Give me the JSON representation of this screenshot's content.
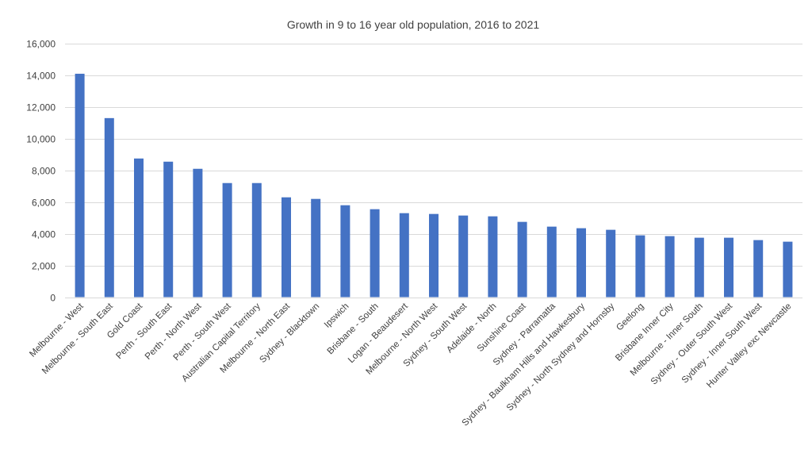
{
  "chart_data": {
    "type": "bar",
    "title": "Growth in 9 to 16 year old population, 2016 to 2021",
    "xlabel": "",
    "ylabel": "",
    "ylim": [
      0,
      16000
    ],
    "yticks": [
      0,
      2000,
      4000,
      6000,
      8000,
      10000,
      12000,
      14000,
      16000
    ],
    "ytick_labels": [
      "0",
      "2,000",
      "4,000",
      "6,000",
      "8,000",
      "10,000",
      "12,000",
      "14,000",
      "16,000"
    ],
    "grid": true,
    "legend": "none",
    "bar_color": "#4472C4",
    "categories": [
      "Melbourne - West",
      "Melbourne - South East",
      "Gold Coast",
      "Perth - South East",
      "Perth - North West",
      "Perth - South West",
      "Australian Capital Territory",
      "Melbourne - North East",
      "Sydney - Blacktown",
      "Ipswich",
      "Brisbane - South",
      "Logan - Beaudesert",
      "Melbourne - North West",
      "Sydney - South West",
      "Adelaide - North",
      "Sunshine Coast",
      "Sydney - Parramatta",
      "Sydney - Baulkham Hills and Hawkesbury",
      "Sydney - North Sydney and Hornsby",
      "Geelong",
      "Brisbane Inner City",
      "Melbourne - Inner South",
      "Sydney - Outer South West",
      "Sydney - Inner South West",
      "Hunter Valley exc Newcastle"
    ],
    "values": [
      14100,
      11300,
      8750,
      8550,
      8100,
      7200,
      7200,
      6300,
      6200,
      5800,
      5550,
      5300,
      5250,
      5150,
      5100,
      4750,
      4450,
      4350,
      4250,
      3900,
      3850,
      3750,
      3750,
      3600,
      3500
    ]
  }
}
